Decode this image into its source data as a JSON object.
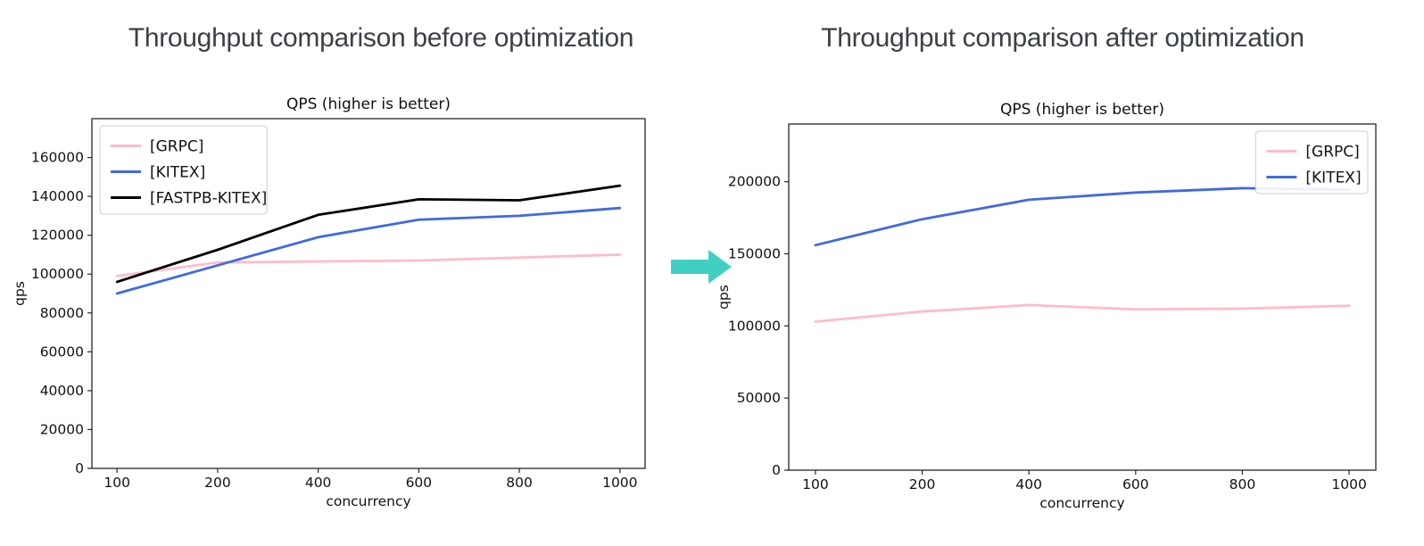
{
  "page": {
    "headings": {
      "before": "Throughput comparison before optimization",
      "after": "Throughput comparison after optimization"
    },
    "arrow": {
      "name": "right-arrow",
      "color": "#41cfc2"
    }
  },
  "chart_data": [
    {
      "id": "before",
      "type": "line",
      "title": "QPS (higher is better)",
      "xlabel": "concurrency",
      "ylabel": "qps",
      "categories": [
        "100",
        "200",
        "400",
        "600",
        "800",
        "1000"
      ],
      "series": [
        {
          "name": "[GRPC]",
          "color": "#ffbdc9",
          "values": [
            99000,
            106000,
            106500,
            107000,
            108500,
            110000
          ]
        },
        {
          "name": "[KITEX]",
          "color": "#4169e1",
          "values": [
            90000,
            104500,
            119000,
            128000,
            130000,
            134000
          ]
        },
        {
          "name": "[FASTPB-KITEX]",
          "color": "#000000",
          "values": [
            96000,
            112500,
            130500,
            138500,
            138000,
            145500
          ]
        }
      ],
      "ylim": [
        0,
        180000
      ],
      "yticks": [
        0,
        20000,
        40000,
        60000,
        80000,
        100000,
        120000,
        140000,
        160000
      ],
      "legend_position": "upper-left",
      "grid": false
    },
    {
      "id": "after",
      "type": "line",
      "title": "QPS (higher is better)",
      "xlabel": "concurrency",
      "ylabel": "qps",
      "categories": [
        "100",
        "200",
        "400",
        "600",
        "800",
        "1000"
      ],
      "series": [
        {
          "name": "[GRPC]",
          "color": "#ffbdc9",
          "values": [
            103000,
            110000,
            114500,
            111500,
            112000,
            114000
          ]
        },
        {
          "name": "[KITEX]",
          "color": "#4169e1",
          "values": [
            156000,
            174000,
            187500,
            192500,
            195500,
            194500
          ]
        }
      ],
      "ylim": [
        0,
        240000
      ],
      "yticks": [
        0,
        50000,
        100000,
        150000,
        200000
      ],
      "legend_position": "upper-right",
      "grid": false
    }
  ]
}
